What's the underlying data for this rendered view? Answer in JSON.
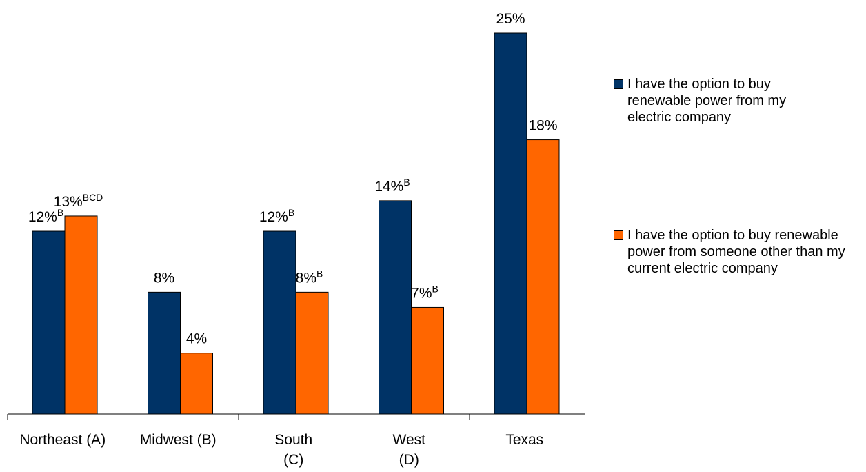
{
  "chart_data": {
    "type": "bar",
    "categories": [
      [
        "Northeast (A)"
      ],
      [
        "Midwest (B)"
      ],
      [
        "South",
        "(C)"
      ],
      [
        "West",
        "(D)"
      ],
      [
        "Texas"
      ]
    ],
    "series": [
      {
        "name": "I have the option to buy renewable power from my electric company",
        "color": "#003366",
        "values": [
          12,
          8,
          12,
          14,
          25
        ],
        "labels": [
          "12%",
          "8%",
          "12%",
          "14%",
          "25%"
        ],
        "sups": [
          "B",
          "",
          "B",
          "B",
          ""
        ]
      },
      {
        "name": "I have the option to buy renewable power from someone other than my current electric company",
        "color": "#FF6600",
        "values": [
          13,
          4,
          8,
          7,
          18
        ],
        "labels": [
          "13%",
          "4%",
          "8%",
          "7%",
          "18%"
        ],
        "sups": [
          "BCD",
          "",
          "B",
          "B",
          ""
        ]
      }
    ],
    "title": "",
    "xlabel": "",
    "ylabel": "",
    "ylim": [
      0,
      25
    ],
    "grid": false,
    "legend": "right"
  }
}
